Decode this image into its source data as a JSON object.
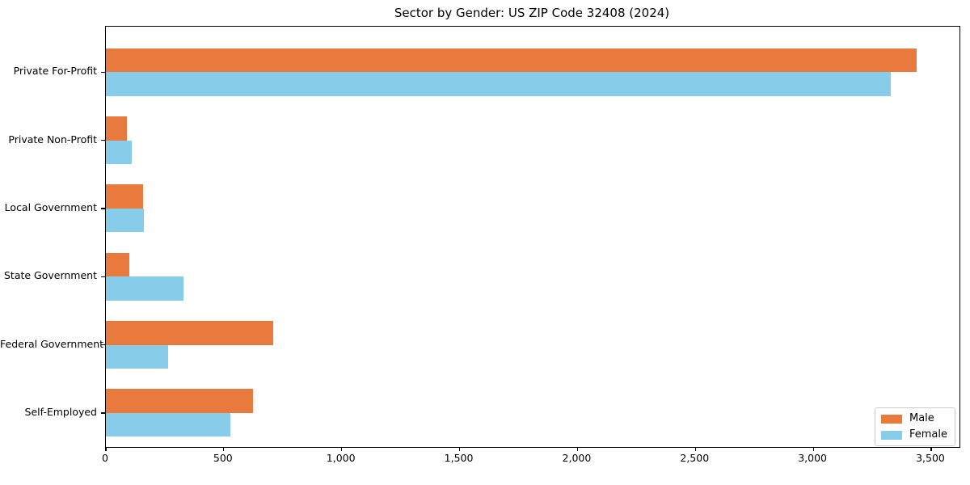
{
  "figure": {
    "title": "Sector by Gender: US ZIP Code 32408 (2024)"
  },
  "chart_data": {
    "type": "bar",
    "orientation": "horizontal",
    "title": "Sector by Gender: US ZIP Code 32408 (2024)",
    "categories": [
      "Private For-Profit",
      "Private Non-Profit",
      "Local Government",
      "State Government",
      "Federal Government",
      "Self-Employed"
    ],
    "series": [
      {
        "name": "Male",
        "color": "#e87a3e",
        "values": [
          3440,
          90,
          157,
          100,
          710,
          625
        ]
      },
      {
        "name": "Female",
        "color": "#87cde9",
        "values": [
          3330,
          110,
          160,
          330,
          265,
          527
        ]
      }
    ],
    "xlabel": "",
    "ylabel": "",
    "xlim": [
      0,
      3620
    ],
    "xticks": [
      0,
      500,
      1000,
      1500,
      2000,
      2500,
      3000,
      3500
    ],
    "xtick_labels": [
      "0",
      "500",
      "1,000",
      "1,500",
      "2,000",
      "2,500",
      "3,000",
      "3,500"
    ],
    "grid": false,
    "legend_position": "lower right",
    "background_color": "#ffffff",
    "axis_color": "#000000"
  }
}
